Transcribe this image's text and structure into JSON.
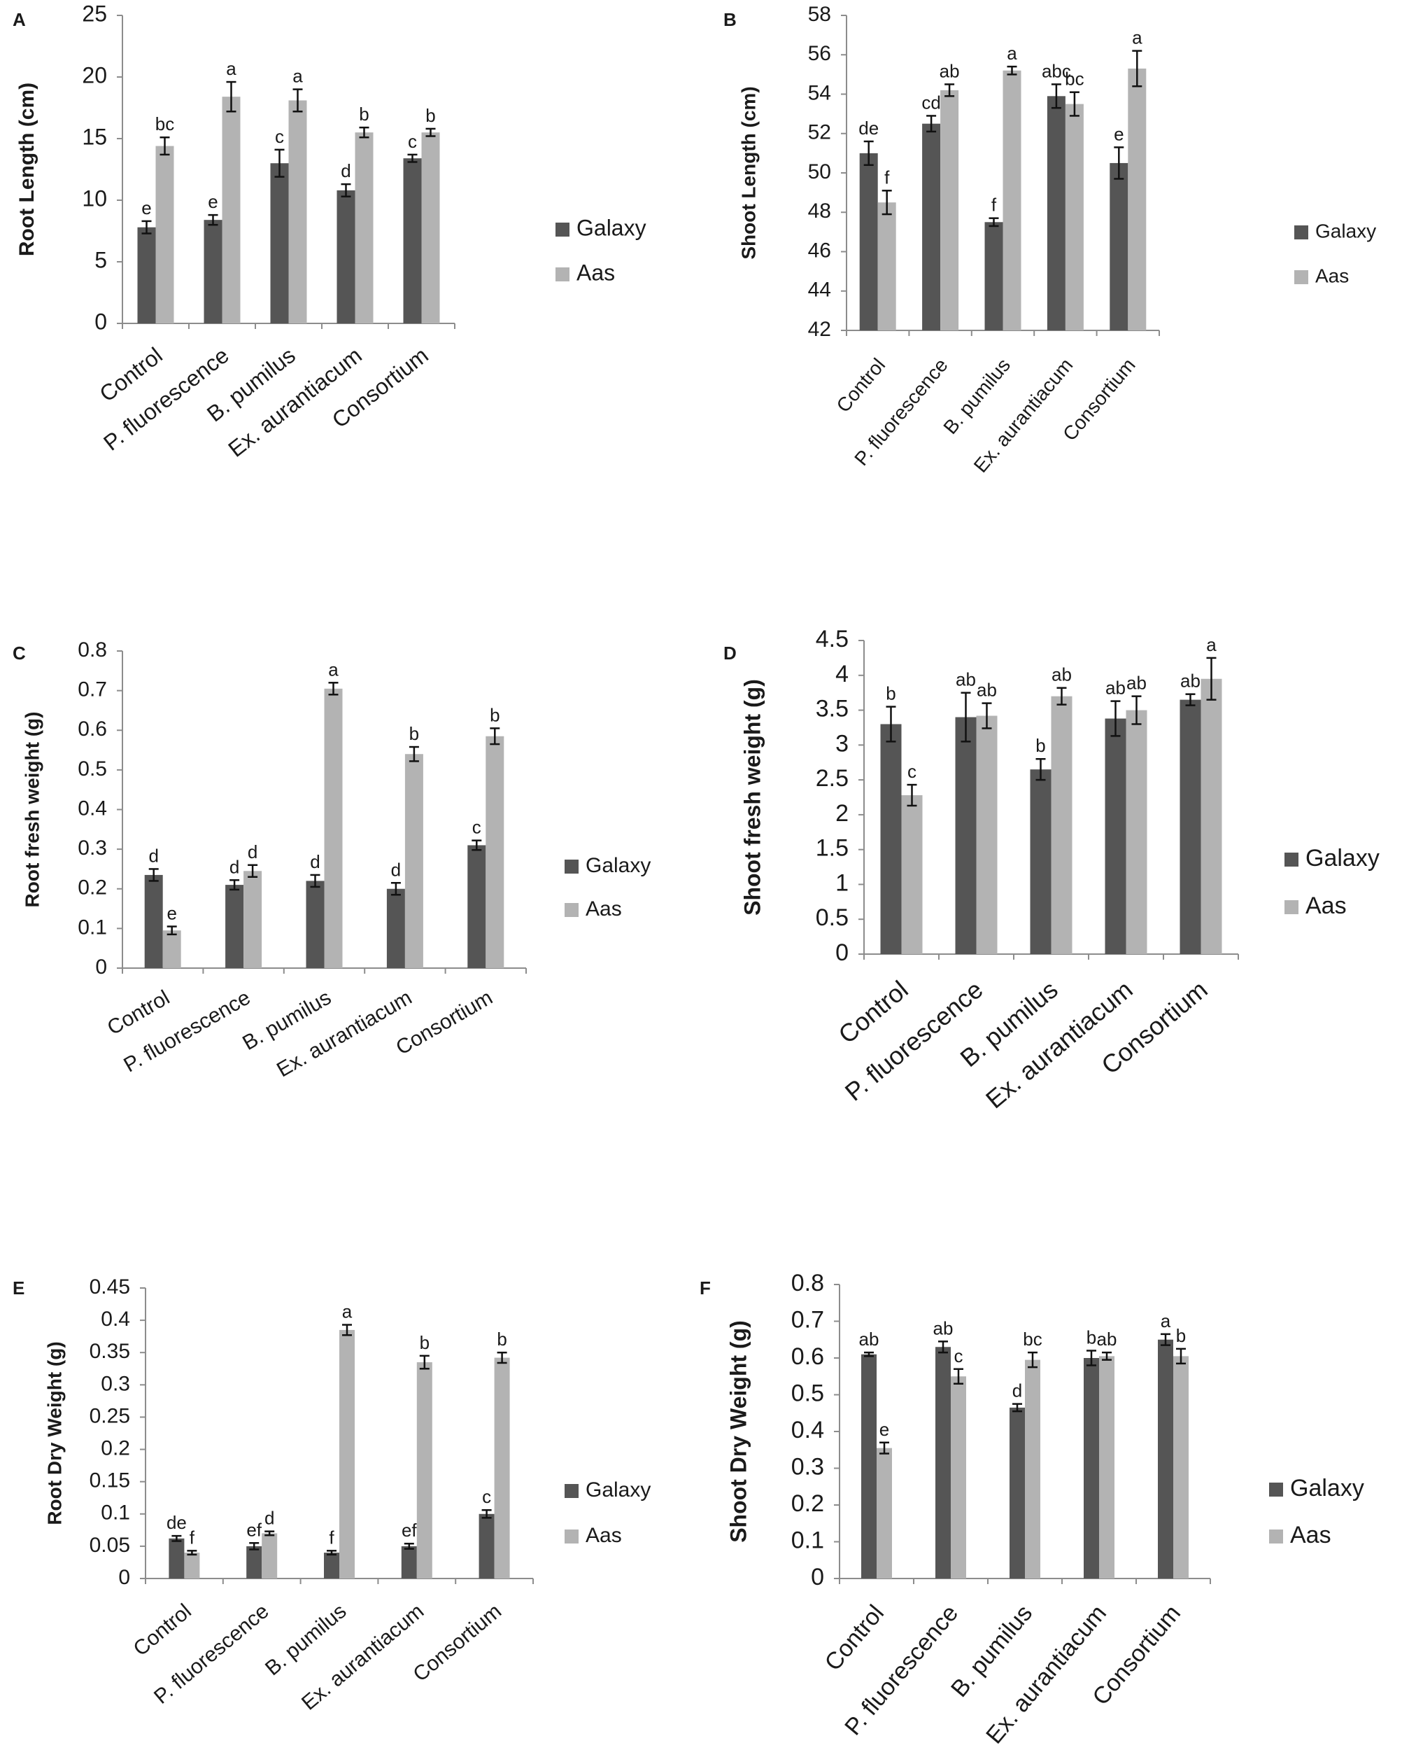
{
  "colors": {
    "galaxy": "#555555",
    "aas": "#b3b3b3",
    "axis": "#8c8c8c",
    "text": "#1a1a1a"
  },
  "chart_data": [
    {
      "panel": "A",
      "type": "bar",
      "ylabel": "Root Length (cm)",
      "ylim": [
        0,
        25
      ],
      "yticks": [
        "0",
        "5",
        "10",
        "15",
        "20",
        "25"
      ],
      "categories": [
        "Control",
        "P. fluorescence",
        "B. pumilus",
        "Ex. aurantiacum",
        "Consortium"
      ],
      "legend": [
        "Galaxy",
        "Aas"
      ],
      "series": [
        {
          "name": "Galaxy",
          "values": [
            7.8,
            8.4,
            13.0,
            10.8,
            13.4
          ],
          "errors": [
            0.5,
            0.4,
            1.1,
            0.5,
            0.3
          ],
          "letters": [
            "e",
            "e",
            "c",
            "d",
            "c"
          ]
        },
        {
          "name": "Aas",
          "values": [
            14.4,
            18.4,
            18.1,
            15.5,
            15.5
          ],
          "errors": [
            0.7,
            1.2,
            0.9,
            0.4,
            0.3
          ],
          "letters": [
            "bc",
            "a",
            "a",
            "b",
            "b"
          ]
        }
      ]
    },
    {
      "panel": "B",
      "type": "bar",
      "ylabel": "Shoot Length (cm)",
      "ylim": [
        42,
        58
      ],
      "yticks": [
        "42",
        "44",
        "46",
        "48",
        "50",
        "52",
        "54",
        "56",
        "58"
      ],
      "categories": [
        "Control",
        "P. fluorescence",
        "B. pumilus",
        "Ex. aurantiacum",
        "Consortium"
      ],
      "legend": [
        "Galaxy",
        "Aas"
      ],
      "series": [
        {
          "name": "Galaxy",
          "values": [
            51.0,
            52.5,
            47.5,
            53.9,
            50.5
          ],
          "errors": [
            0.6,
            0.4,
            0.2,
            0.6,
            0.8
          ],
          "letters": [
            "de",
            "cd",
            "f",
            "abc",
            "e"
          ]
        },
        {
          "name": "Aas",
          "values": [
            48.5,
            54.2,
            55.2,
            53.5,
            55.3
          ],
          "errors": [
            0.6,
            0.3,
            0.2,
            0.6,
            0.9
          ],
          "letters": [
            "f",
            "ab",
            "a",
            "bc",
            "a"
          ]
        }
      ]
    },
    {
      "panel": "C",
      "type": "bar",
      "ylabel": "Root fresh weight (g)",
      "ylim": [
        0,
        0.8
      ],
      "yticks": [
        "0",
        "0.1",
        "0.2",
        "0.3",
        "0.4",
        "0.5",
        "0.6",
        "0.7",
        "0.8"
      ],
      "categories": [
        "Control",
        "P. fluorescence",
        "B. pumilus",
        "Ex. aurantiacum",
        "Consortium"
      ],
      "legend": [
        "Galaxy",
        "Aas"
      ],
      "series": [
        {
          "name": "Galaxy",
          "values": [
            0.235,
            0.21,
            0.22,
            0.2,
            0.31
          ],
          "errors": [
            0.015,
            0.012,
            0.015,
            0.015,
            0.012
          ],
          "letters": [
            "d",
            "d",
            "d",
            "d",
            "c"
          ]
        },
        {
          "name": "Aas",
          "values": [
            0.095,
            0.245,
            0.705,
            0.54,
            0.585
          ],
          "errors": [
            0.01,
            0.015,
            0.015,
            0.018,
            0.02
          ],
          "letters": [
            "e",
            "d",
            "a",
            "b",
            "b"
          ]
        }
      ]
    },
    {
      "panel": "D",
      "type": "bar",
      "ylabel": "Shoot fresh weight (g)",
      "ylim": [
        0,
        4.5
      ],
      "yticks": [
        "0",
        "0.5",
        "1",
        "1.5",
        "2",
        "2.5",
        "3",
        "3.5",
        "4",
        "4.5"
      ],
      "categories": [
        "Control",
        "P. fluorescence",
        "B. pumilus",
        "Ex. aurantiacum",
        "Consortium"
      ],
      "legend": [
        "Galaxy",
        "Aas"
      ],
      "series": [
        {
          "name": "Galaxy",
          "values": [
            3.3,
            3.4,
            2.65,
            3.38,
            3.65
          ],
          "errors": [
            0.25,
            0.35,
            0.15,
            0.25,
            0.08
          ],
          "letters": [
            "b",
            "ab",
            "b",
            "ab",
            "ab"
          ]
        },
        {
          "name": "Aas",
          "values": [
            2.28,
            3.42,
            3.7,
            3.5,
            3.95
          ],
          "errors": [
            0.15,
            0.18,
            0.12,
            0.2,
            0.3
          ],
          "letters": [
            "c",
            "ab",
            "ab",
            "ab",
            "a"
          ]
        }
      ]
    },
    {
      "panel": "E",
      "type": "bar",
      "ylabel": "Root Dry Weight (g)",
      "ylim": [
        0,
        0.45
      ],
      "yticks": [
        "0",
        "0.05",
        "0.1",
        "0.15",
        "0.2",
        "0.25",
        "0.3",
        "0.35",
        "0.4",
        "0.45"
      ],
      "categories": [
        "Control",
        "P. fluorescence",
        "B. pumilus",
        "Ex. aurantiacum",
        "Consortium"
      ],
      "legend": [
        "Galaxy",
        "Aas"
      ],
      "series": [
        {
          "name": "Galaxy",
          "values": [
            0.062,
            0.05,
            0.04,
            0.05,
            0.1
          ],
          "errors": [
            0.004,
            0.005,
            0.003,
            0.004,
            0.006
          ],
          "letters": [
            "de",
            "ef",
            "f",
            "ef",
            "c"
          ]
        },
        {
          "name": "Aas",
          "values": [
            0.04,
            0.07,
            0.385,
            0.335,
            0.342
          ],
          "errors": [
            0.003,
            0.003,
            0.008,
            0.01,
            0.008
          ],
          "letters": [
            "f",
            "d",
            "a",
            "b",
            "b"
          ]
        }
      ]
    },
    {
      "panel": "F",
      "type": "bar",
      "ylabel": "Shoot Dry Weight (g)",
      "ylim": [
        0,
        0.8
      ],
      "yticks": [
        "0",
        "0.1",
        "0.2",
        "0.3",
        "0.4",
        "0.5",
        "0.6",
        "0.7",
        "0.8"
      ],
      "categories": [
        "Control",
        "P. fluorescence",
        "B. pumilus",
        "Ex. aurantiacum",
        "Consortium"
      ],
      "legend": [
        "Galaxy",
        "Aas"
      ],
      "series": [
        {
          "name": "Galaxy",
          "values": [
            0.61,
            0.63,
            0.465,
            0.6,
            0.65
          ],
          "errors": [
            0.005,
            0.015,
            0.01,
            0.02,
            0.015
          ],
          "letters": [
            "ab",
            "ab",
            "d",
            "b",
            "a"
          ]
        },
        {
          "name": "Aas",
          "values": [
            0.355,
            0.55,
            0.595,
            0.605,
            0.605
          ],
          "errors": [
            0.015,
            0.02,
            0.02,
            0.01,
            0.02
          ],
          "letters": [
            "e",
            "c",
            "bc",
            "ab",
            "b"
          ]
        }
      ]
    }
  ]
}
